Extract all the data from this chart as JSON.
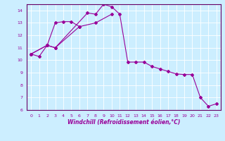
{
  "xlabel": "Windchill (Refroidissement éolien,°C)",
  "background_color": "#cceeff",
  "grid_color": "#ffffff",
  "line_color": "#990099",
  "ylim": [
    6,
    14.5
  ],
  "xlim": [
    -0.5,
    23.5
  ],
  "s1_x": [
    0,
    1,
    2,
    3,
    7,
    8,
    9,
    10,
    11,
    12,
    13,
    14,
    15,
    16,
    17,
    18,
    19,
    20,
    21,
    22,
    23
  ],
  "s1_y": [
    10.5,
    10.3,
    11.2,
    11.0,
    13.8,
    13.7,
    14.5,
    14.3,
    13.7,
    9.85,
    9.85,
    9.85,
    9.5,
    9.3,
    9.1,
    8.9,
    8.85,
    8.85,
    7.0,
    6.3,
    6.5
  ],
  "s2_x": [
    0,
    2,
    3,
    4,
    5,
    6
  ],
  "s2_y": [
    10.5,
    11.2,
    13.0,
    13.1,
    13.1,
    12.7
  ],
  "s3_x": [
    0,
    2,
    3,
    6,
    8,
    10
  ],
  "s3_y": [
    10.5,
    11.2,
    11.0,
    12.7,
    13.0,
    13.7
  ],
  "yticks": [
    6,
    7,
    8,
    9,
    10,
    11,
    12,
    13,
    14
  ],
  "xticks": [
    0,
    1,
    2,
    3,
    4,
    5,
    6,
    7,
    8,
    9,
    10,
    11,
    12,
    13,
    14,
    15,
    16,
    17,
    18,
    19,
    20,
    21,
    22,
    23
  ],
  "tick_color": "#990099",
  "spine_color": "#660066",
  "label_fontsize": 5.5,
  "tick_fontsize": 4.5
}
